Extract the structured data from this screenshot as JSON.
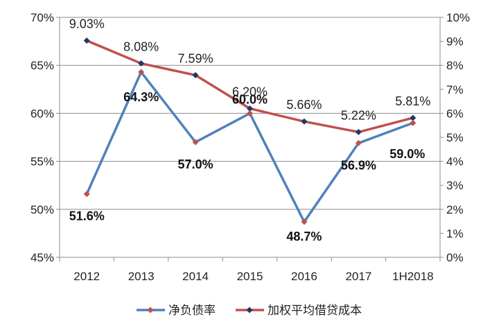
{
  "chart_data": {
    "type": "line",
    "categories": [
      "2012",
      "2013",
      "2014",
      "2015",
      "2016",
      "2017",
      "1H2018"
    ],
    "left_axis": {
      "ylim": [
        45,
        70
      ],
      "ticks": [
        45,
        50,
        55,
        60,
        65,
        70
      ],
      "tick_labels": [
        "45%",
        "50%",
        "55%",
        "60%",
        "65%",
        "70%"
      ]
    },
    "right_axis": {
      "ylim": [
        0,
        10
      ],
      "ticks": [
        0,
        1,
        2,
        3,
        4,
        5,
        6,
        7,
        8,
        9,
        10
      ],
      "tick_labels": [
        "0%",
        "1%",
        "2%",
        "3%",
        "4%",
        "5%",
        "6%",
        "7%",
        "8%",
        "9%",
        "10%"
      ]
    },
    "series": [
      {
        "name": "净负债率",
        "axis": "left",
        "color": "#4F81BD",
        "marker_color": "#C0504D",
        "values": [
          51.6,
          64.3,
          57.0,
          60.0,
          48.7,
          56.9,
          59.0
        ],
        "labels": [
          "51.6%",
          "64.3%",
          "57.0%",
          "60.0%",
          "48.7%",
          "56.9%",
          "59.0%"
        ]
      },
      {
        "name": "加权平均借贷成本",
        "axis": "right",
        "color": "#C0504D",
        "marker_color": "#1F3864",
        "values": [
          9.03,
          8.08,
          7.59,
          6.2,
          5.66,
          5.22,
          5.81
        ],
        "labels": [
          "9.03%",
          "8.08%",
          "7.59%",
          "6.20%",
          "5.66%",
          "5.22%",
          "5.81%"
        ]
      }
    ],
    "grid": true,
    "legend_position": "bottom"
  }
}
